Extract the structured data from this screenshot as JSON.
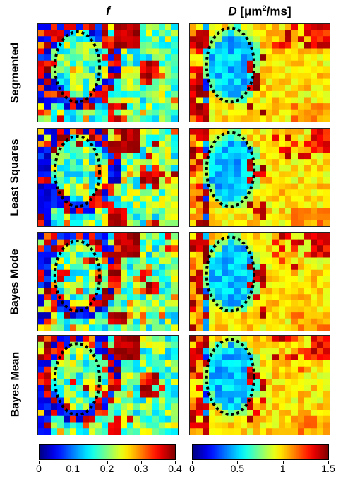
{
  "columns": {
    "f": {
      "symbol": "f",
      "unit": ""
    },
    "D": {
      "symbol": "D",
      "unit": "[μm",
      "sup": "2",
      "unit_tail": "/ms]"
    }
  },
  "rows": [
    "Segmented",
    "Least Squares",
    "Bayes Mode",
    "Bayes Mean"
  ],
  "colorbars": {
    "f": {
      "ticks": [
        "0",
        "0.1",
        "0.2",
        "0.3",
        "0.4"
      ],
      "range": [
        0,
        0.4
      ],
      "colormap": "jet"
    },
    "D": {
      "ticks": [
        "0",
        "0.5",
        "1",
        "1.5"
      ],
      "range": [
        0,
        1.5
      ],
      "colormap": "jet"
    }
  }
}
